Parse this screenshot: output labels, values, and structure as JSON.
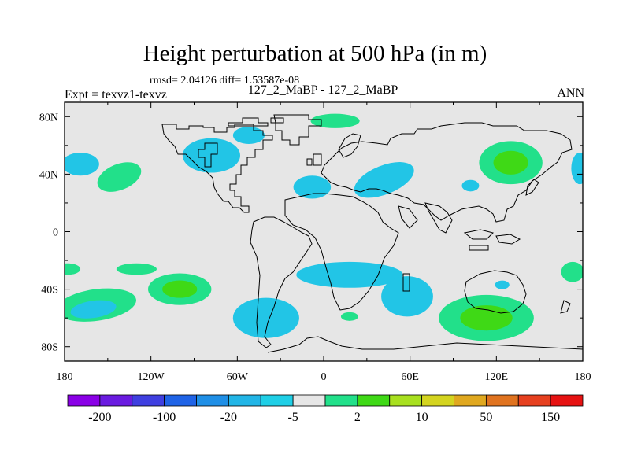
{
  "plot": {
    "title": "Height perturbation at 500 hPa (in m)",
    "stats_line": "rmsd= 2.04126 diff= 1.53587e-08",
    "experiment": "Expt = texvz1-texvz",
    "case_pair": "127_2_MaBP - 127_2_MaBP",
    "season": "ANN"
  },
  "axes": {
    "lon_range": [
      -180,
      180
    ],
    "lat_range": [
      -90,
      90
    ],
    "lat_labels": [
      "80N",
      "40N",
      "0",
      "40S",
      "80S"
    ],
    "lat_values": [
      80,
      40,
      0,
      -40,
      -80
    ],
    "lon_labels": [
      "180",
      "120W",
      "60W",
      "0",
      "60E",
      "120E",
      "180"
    ],
    "lon_values": [
      -180,
      -120,
      -60,
      0,
      60,
      120,
      180
    ]
  },
  "colorbar": {
    "colors": [
      "#8a00e6",
      "#6a1be0",
      "#3f3fe0",
      "#1f63e6",
      "#1f8fe6",
      "#22b5e6",
      "#1fcfe6",
      "#e6e6e6",
      "#22e08a",
      "#3fd916",
      "#a8e01f",
      "#d4d41f",
      "#e0a81f",
      "#e0731f",
      "#e6401f",
      "#e61212"
    ],
    "labels": [
      "-200",
      "-100",
      "-20",
      "-5",
      "2",
      "10",
      "50",
      "150"
    ],
    "label_boundaries": [
      1,
      3,
      5,
      7,
      9,
      11,
      13,
      15
    ]
  },
  "field_colors": {
    "background": "#e6e6e6",
    "neg_light": "#22c5e6",
    "neg_mid": "#1f9fe6",
    "pos_light": "#22e08a",
    "pos_mid": "#3fd916"
  },
  "anomalies": [
    {
      "sign": "pos",
      "lon": -142,
      "lat": 38,
      "rx": 16,
      "ry": 9,
      "rot": -22,
      "core": false
    },
    {
      "sign": "neg",
      "lon": -169,
      "lat": 47,
      "rx": 13,
      "ry": 8,
      "rot": 0,
      "core": false
    },
    {
      "sign": "neg",
      "lon": -78,
      "lat": 53,
      "rx": 20,
      "ry": 12,
      "rot": 0,
      "core": false
    },
    {
      "sign": "neg",
      "lon": -52,
      "lat": 67,
      "rx": 11,
      "ry": 6,
      "rot": 0,
      "core": false
    },
    {
      "sign": "pos",
      "lon": 8,
      "lat": 77,
      "rx": 17,
      "ry": 5,
      "rot": 0,
      "core": false
    },
    {
      "sign": "neg",
      "lon": -8,
      "lat": 31,
      "rx": 13,
      "ry": 8,
      "rot": 0,
      "core": false
    },
    {
      "sign": "neg",
      "lon": 42,
      "lat": 36,
      "rx": 22,
      "ry": 10,
      "rot": -22,
      "core": false
    },
    {
      "sign": "neg",
      "lon": 102,
      "lat": 32,
      "rx": 6,
      "ry": 4,
      "rot": 0,
      "core": false
    },
    {
      "sign": "pos",
      "lon": 130,
      "lat": 48,
      "rx": 22,
      "ry": 15,
      "rot": 0,
      "core": true
    },
    {
      "sign": "neg",
      "lon": 178,
      "lat": 44,
      "rx": 6,
      "ry": 11,
      "rot": 0,
      "core": false
    },
    {
      "sign": "pos",
      "lon": -100,
      "lat": -40,
      "rx": 22,
      "ry": 11,
      "rot": 0,
      "core": true
    },
    {
      "sign": "pos",
      "lon": -158,
      "lat": -51,
      "rx": 28,
      "ry": 11,
      "rot": -8,
      "core": false
    },
    {
      "sign": "neg",
      "lon": -160,
      "lat": -54,
      "rx": 16,
      "ry": 6,
      "rot": -8,
      "core": false
    },
    {
      "sign": "pos",
      "lon": -178,
      "lat": -26,
      "rx": 9,
      "ry": 4,
      "rot": 0,
      "core": false
    },
    {
      "sign": "pos",
      "lon": -130,
      "lat": -26,
      "rx": 14,
      "ry": 4,
      "rot": 0,
      "core": false
    },
    {
      "sign": "neg",
      "lon": -40,
      "lat": -60,
      "rx": 23,
      "ry": 14,
      "rot": 0,
      "core": false
    },
    {
      "sign": "neg",
      "lon": 18,
      "lat": -30,
      "rx": 37,
      "ry": 9,
      "rot": 0,
      "core": false
    },
    {
      "sign": "neg",
      "lon": 58,
      "lat": -45,
      "rx": 18,
      "ry": 14,
      "rot": 0,
      "core": false
    },
    {
      "sign": "pos",
      "lon": 18,
      "lat": -59,
      "rx": 6,
      "ry": 3,
      "rot": 0,
      "core": false
    },
    {
      "sign": "pos",
      "lon": 113,
      "lat": -60,
      "rx": 33,
      "ry": 16,
      "rot": 0,
      "core": true
    },
    {
      "sign": "pos",
      "lon": 173,
      "lat": -28,
      "rx": 8,
      "ry": 7,
      "rot": 0,
      "core": false
    },
    {
      "sign": "neg",
      "lon": 124,
      "lat": -37,
      "rx": 5,
      "ry": 3,
      "rot": 0,
      "core": false
    }
  ]
}
